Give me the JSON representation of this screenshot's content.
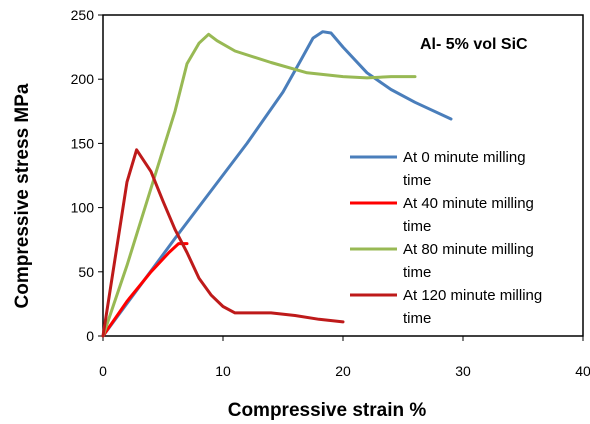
{
  "chart_data": {
    "type": "line",
    "annotation": "Al- 5% vol SiC",
    "xlabel": "Compressive strain %",
    "ylabel": "Compressive stress MPa",
    "xlim": [
      0,
      40
    ],
    "ylim": [
      0,
      250
    ],
    "x_ticks": [
      "0",
      "10",
      "20",
      "30",
      "40"
    ],
    "y_ticks": [
      "0",
      "50",
      "100",
      "150",
      "200",
      "250"
    ],
    "grid": false,
    "legend_position": "right",
    "series": [
      {
        "name": "At 0 minute milling time",
        "legend_lines": [
          "At 0 minute milling",
          "time"
        ],
        "color": "#4a7ebb",
        "x": [
          0,
          3,
          6,
          9,
          12,
          15,
          16.5,
          17.5,
          18.3,
          19,
          20,
          22,
          24,
          26,
          29
        ],
        "y": [
          0,
          38,
          76,
          113,
          150,
          190,
          215,
          232,
          237,
          236,
          225,
          205,
          192,
          182,
          169
        ]
      },
      {
        "name": "At 40 minute milling time",
        "legend_lines": [
          "At 40 minute milling",
          "time"
        ],
        "color": "#ff0000",
        "x": [
          0,
          2,
          4,
          5.5,
          6.3,
          7
        ],
        "y": [
          0,
          27,
          50,
          65,
          72,
          72
        ]
      },
      {
        "name": "At 80 minute milling time",
        "legend_lines": [
          "At 80 minute milling",
          "time"
        ],
        "color": "#98b954",
        "x": [
          0,
          2,
          4,
          6,
          7,
          8,
          8.8,
          9.5,
          11,
          14,
          17,
          20,
          22,
          24,
          26
        ],
        "y": [
          0,
          55,
          115,
          175,
          212,
          228,
          235,
          230,
          222,
          213,
          205,
          202,
          201,
          202,
          202
        ]
      },
      {
        "name": "At 120 minute milling time",
        "legend_lines": [
          "At 120 minute milling",
          "time"
        ],
        "color": "#be1a1a",
        "x": [
          0,
          1,
          2,
          2.8,
          4,
          5,
          6,
          7,
          8,
          9,
          10,
          11,
          12,
          14,
          16,
          18,
          20
        ],
        "y": [
          0,
          60,
          120,
          145,
          128,
          105,
          83,
          65,
          45,
          32,
          23,
          18,
          18,
          18,
          16,
          13,
          11
        ]
      }
    ]
  }
}
